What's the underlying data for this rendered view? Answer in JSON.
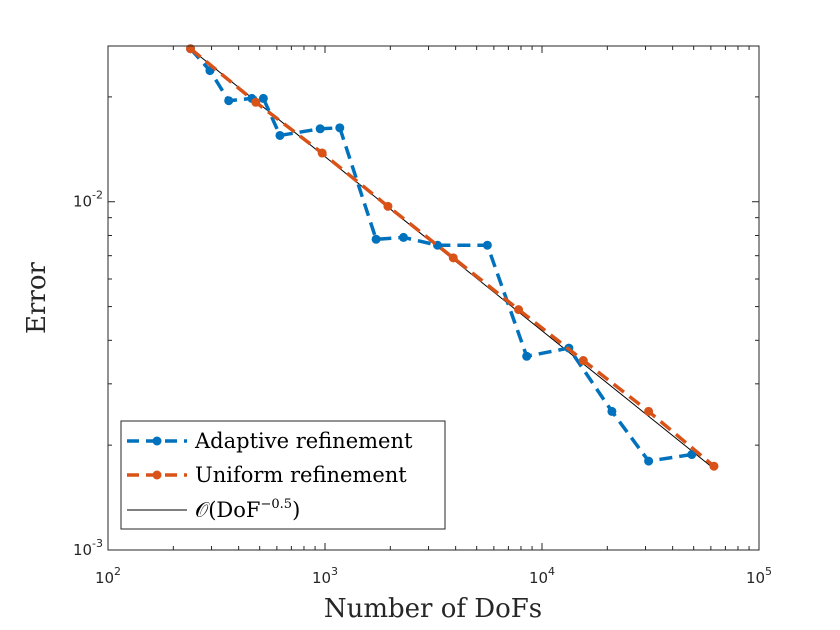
{
  "chart_data": {
    "type": "line",
    "xscale": "log",
    "yscale": "log",
    "xlim": [
      100,
      100000
    ],
    "ylim": [
      0.001,
      0.028
    ],
    "xlabel": "Number of DoFs",
    "ylabel": "Error",
    "grid": false,
    "legend_placement": "bottom-left",
    "x_ticks": [
      {
        "value": 100,
        "base": "10",
        "exp": "2"
      },
      {
        "value": 1000,
        "base": "10",
        "exp": "3"
      },
      {
        "value": 10000,
        "base": "10",
        "exp": "4"
      },
      {
        "value": 100000,
        "base": "10",
        "exp": "5"
      }
    ],
    "y_ticks": [
      {
        "value": 0.001,
        "base": "10",
        "exp": "-3"
      },
      {
        "value": 0.01,
        "base": "10",
        "exp": "-2"
      }
    ],
    "series": [
      {
        "name": "Adaptive refinement",
        "color": "#0072BD",
        "style": "dashed",
        "marker": "circle",
        "x": [
          240,
          295,
          360,
          460,
          520,
          620,
          950,
          1170,
          1720,
          2300,
          3300,
          5600,
          8500,
          13300,
          21000,
          31000,
          49000
        ],
        "y": [
          0.0275,
          0.0238,
          0.0195,
          0.0198,
          0.0198,
          0.0155,
          0.0162,
          0.0163,
          0.0078,
          0.0079,
          0.0075,
          0.0075,
          0.0036,
          0.0038,
          0.0025,
          0.0018,
          0.00188
        ]
      },
      {
        "name": "Uniform refinement",
        "color": "#D95319",
        "style": "dashed",
        "marker": "circle",
        "x": [
          240,
          480,
          970,
          1950,
          3900,
          7800,
          15500,
          31000,
          62000
        ],
        "y": [
          0.0275,
          0.0193,
          0.0138,
          0.0097,
          0.0069,
          0.0049,
          0.0035,
          0.0025,
          0.00174
        ]
      },
      {
        "name_parts": {
          "pre": "𝒪(DoF",
          "exp": "−0.5",
          "post": ")"
        },
        "color": "#000000",
        "style": "solid",
        "marker": "none",
        "x": [
          240,
          60000
        ],
        "y": [
          0.0275,
          0.00174
        ]
      }
    ]
  }
}
